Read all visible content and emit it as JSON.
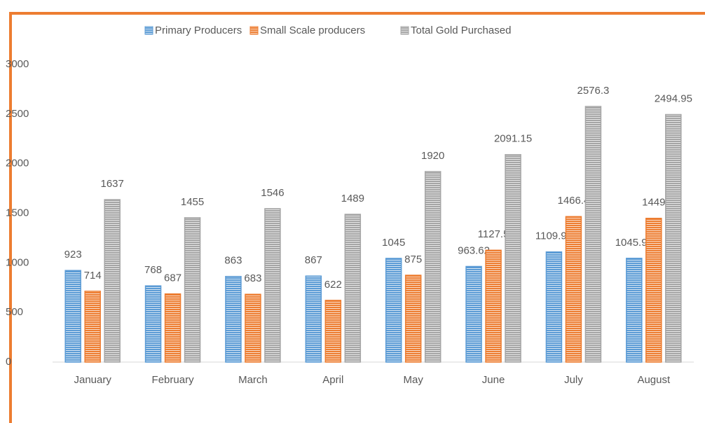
{
  "chart_data": {
    "type": "bar",
    "categories": [
      "January",
      "February",
      "March",
      "April",
      "May",
      "June",
      "July",
      "August"
    ],
    "series": [
      {
        "name": "Primary Producers",
        "color": "#5b9bd5",
        "values": [
          923,
          768,
          863,
          867,
          1045,
          963.62,
          1109.91,
          1045.97
        ]
      },
      {
        "name": "Small Scale producers",
        "color": "#ed7d31",
        "values": [
          714,
          687,
          683,
          622,
          875,
          1127.5,
          1466.4,
          1449
        ]
      },
      {
        "name": "Total Gold Purchased",
        "color": "#a5a5a5",
        "values": [
          1637,
          1455,
          1546,
          1489,
          1920,
          2091.15,
          2576.3,
          2494.95
        ]
      }
    ],
    "ylim": [
      0,
      3000
    ],
    "yticks": [
      0,
      500,
      1000,
      1500,
      2000,
      2500,
      3000
    ],
    "grid": false,
    "legend": "top"
  }
}
